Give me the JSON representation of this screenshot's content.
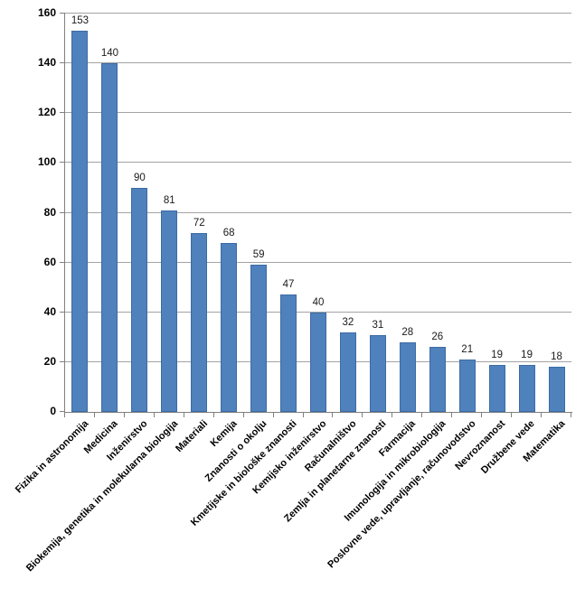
{
  "chart_data": {
    "type": "bar",
    "title": "",
    "xlabel": "",
    "ylabel": "",
    "categories": [
      "Fizika in astronomija",
      "Medicina",
      "Inženirstvo",
      "Biokemija, genetika in molekularna biologija",
      "Materiali",
      "Kemija",
      "Znanosti o okolju",
      "Kmetijske in biološke znanosti",
      "Kemijsko inženirstvo",
      "Računalništvo",
      "Zemlja in planetarne znanosti",
      "Farmacija",
      "Imunologija in mikrobiologija",
      "Poslovne vede, upravljanje, računovodstvo",
      "Nevroznanost",
      "Družbene vede",
      "Matematika"
    ],
    "values": [
      153,
      140,
      90,
      81,
      72,
      68,
      59,
      47,
      40,
      32,
      31,
      28,
      26,
      21,
      19,
      19,
      18
    ],
    "data_labels": [
      153,
      140,
      90,
      81,
      72,
      68,
      59,
      47,
      40,
      32,
      31,
      28,
      26,
      21,
      19,
      19,
      18
    ],
    "ylim": [
      0,
      160
    ],
    "yticks": [
      0,
      20,
      40,
      60,
      80,
      100,
      120,
      140,
      160
    ],
    "grid": true,
    "legend_position": "none",
    "x_label_rotation_deg": 45,
    "colors": {
      "bar_fill": "#4f81bd",
      "bar_border": "#3c6ba5",
      "gridline": "#a3a3a3",
      "axis_line": "#808080",
      "tick_mark": "#808080",
      "label_text": "#000000",
      "data_label_text": "#1a1a1a",
      "background": "#ffffff"
    }
  }
}
